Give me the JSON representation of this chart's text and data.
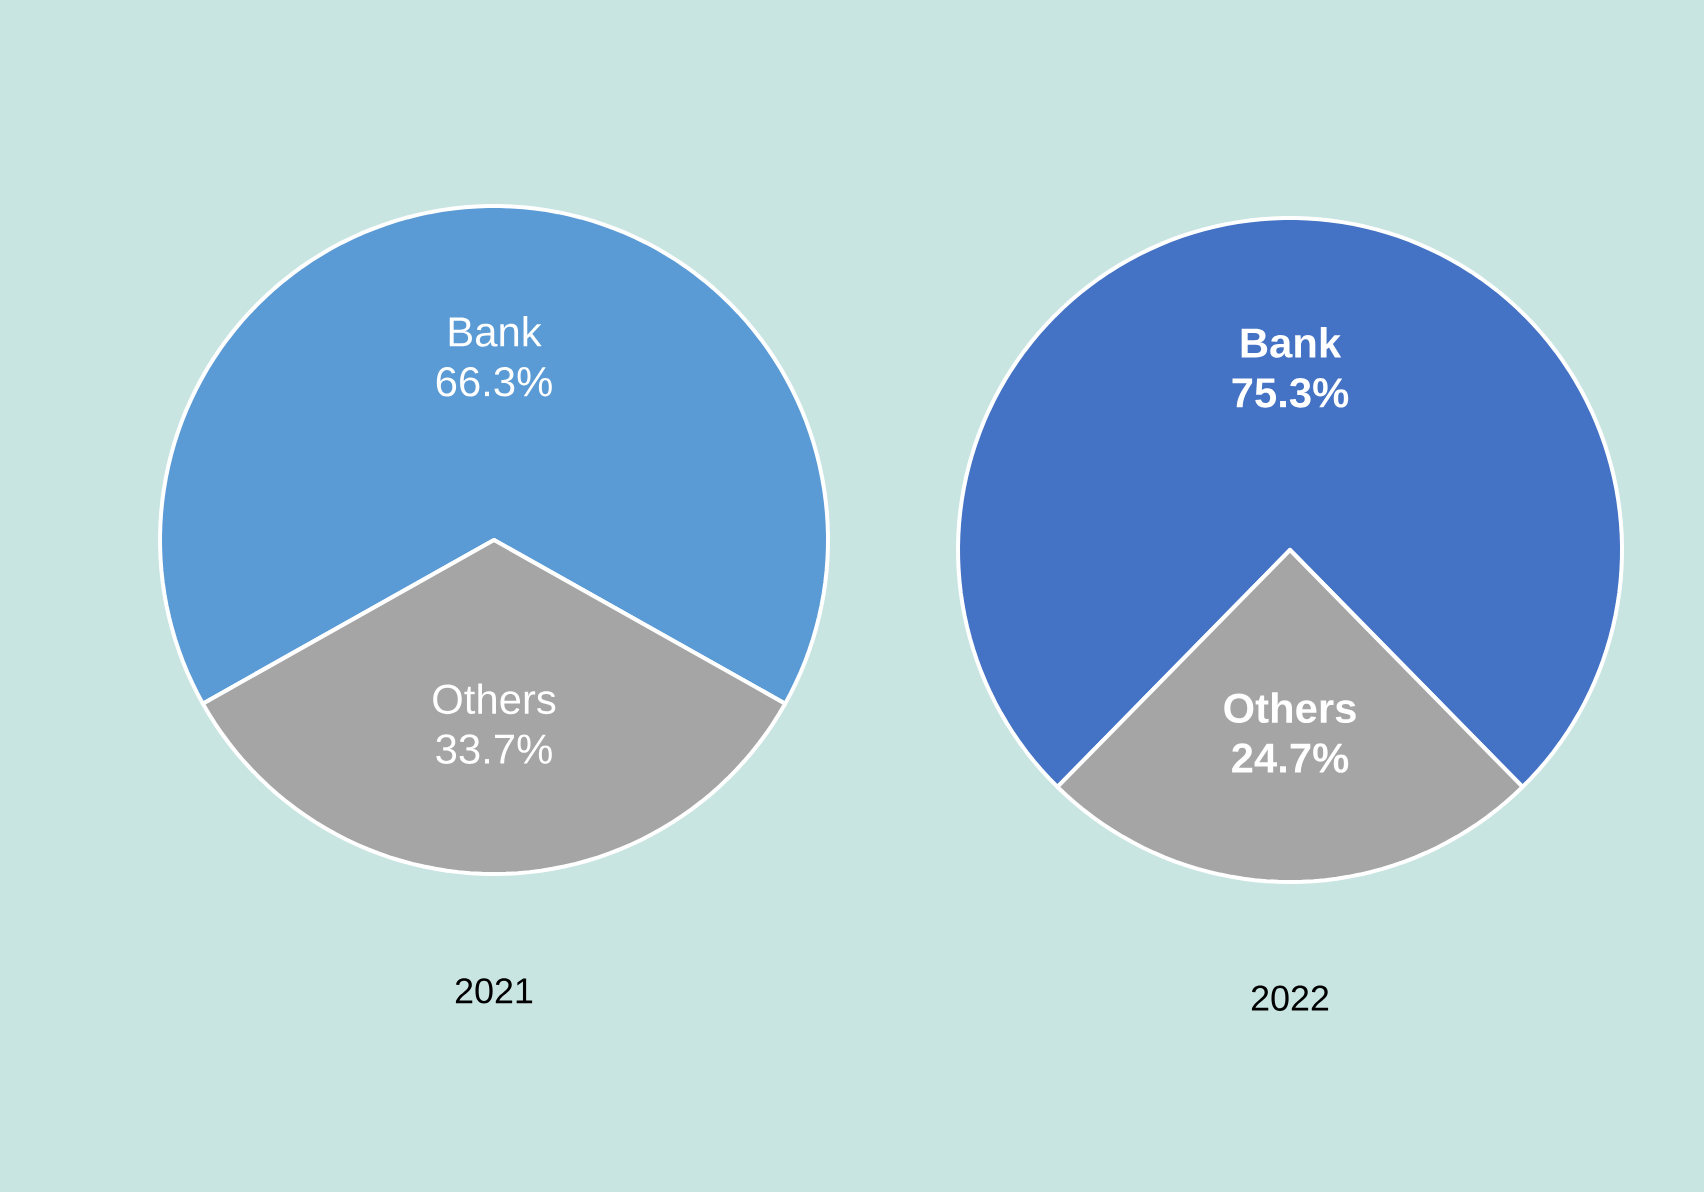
{
  "chart_data": [
    {
      "type": "pie",
      "categories": [
        "Bank",
        "Others"
      ],
      "values": [
        66.3,
        33.7
      ],
      "value_labels": [
        "66.3%",
        "33.7%"
      ],
      "colors": [
        "#5b9bd5",
        "#a5a5a5"
      ],
      "xlabel": "2021"
    },
    {
      "type": "pie",
      "categories": [
        "Bank",
        "Others"
      ],
      "values": [
        75.3,
        24.7
      ],
      "value_labels": [
        "75.3%",
        "24.7%"
      ],
      "colors": [
        "#4472c4",
        "#a5a5a5"
      ],
      "xlabel": "2022"
    }
  ]
}
